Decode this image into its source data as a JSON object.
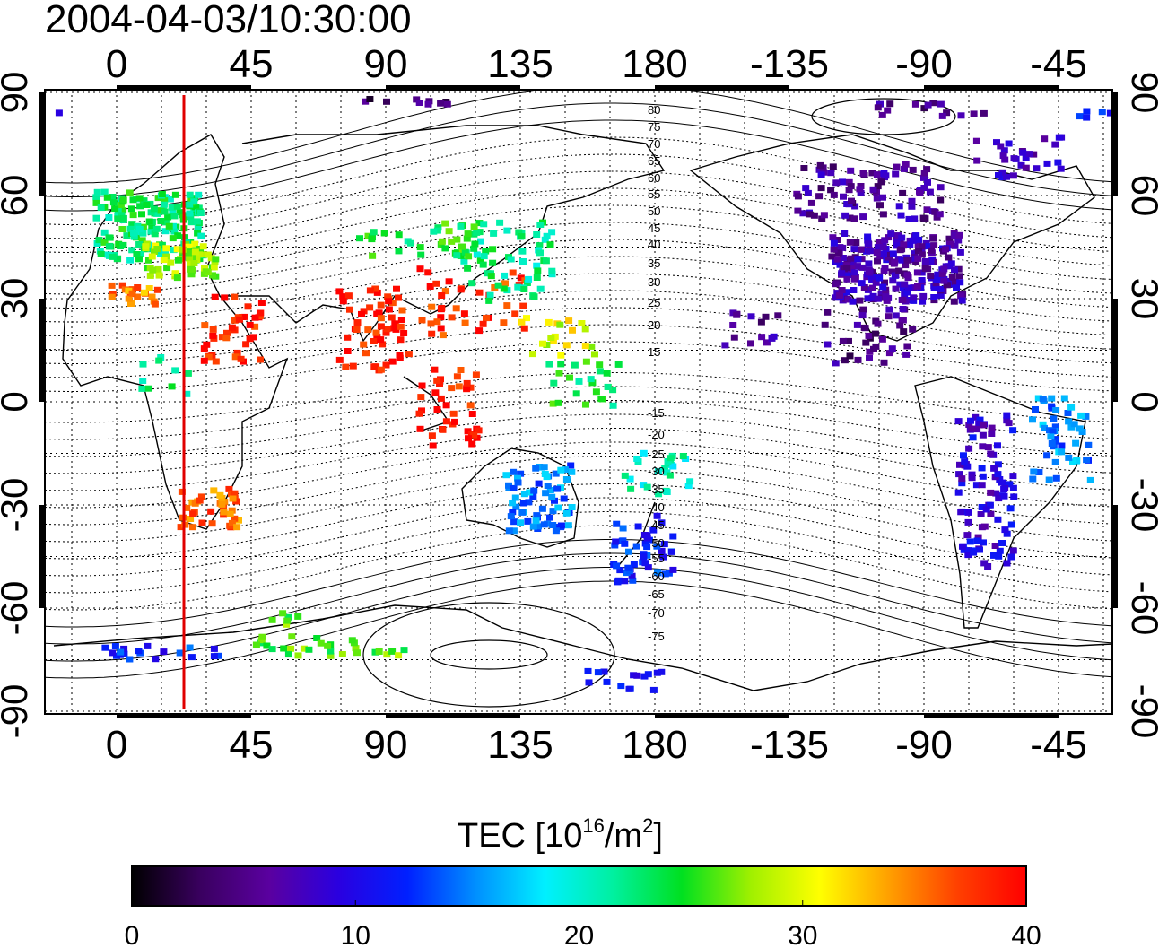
{
  "title": "2004-04-03/10:30:00",
  "map": {
    "lon_ticks": [
      "0",
      "45",
      "90",
      "135",
      "180",
      "-135",
      "-90",
      "-45"
    ],
    "lat_ticks": [
      "90",
      "60",
      "30",
      "0",
      "-30",
      "-60",
      "-90"
    ],
    "contour_labels_north": [
      "80",
      "75",
      "70",
      "65",
      "60",
      "55",
      "50",
      "45",
      "40",
      "35",
      "30",
      "25",
      "20",
      "15"
    ],
    "contour_labels_south": [
      "-15",
      "-20",
      "-25",
      "-30",
      "-35",
      "-40",
      "-45",
      "-50",
      "-55",
      "-60",
      "-65",
      "-70",
      "-75"
    ],
    "terminator_longitude": 22.5
  },
  "colorbar": {
    "label_main": "TEC  [10",
    "label_sup1": "16",
    "label_mid": "/m",
    "label_sup2": "2",
    "label_end": "]",
    "min": 0,
    "max": 40,
    "ticks": [
      "0",
      "10",
      "20",
      "30",
      "40"
    ],
    "colormap": [
      "#000000",
      "#3a0060",
      "#5a00a0",
      "#2a00e0",
      "#0020ff",
      "#0090ff",
      "#00f0ff",
      "#00f0a0",
      "#00e020",
      "#a0f000",
      "#ffff00",
      "#ffa000",
      "#ff4000",
      "#ff0000"
    ]
  }
}
